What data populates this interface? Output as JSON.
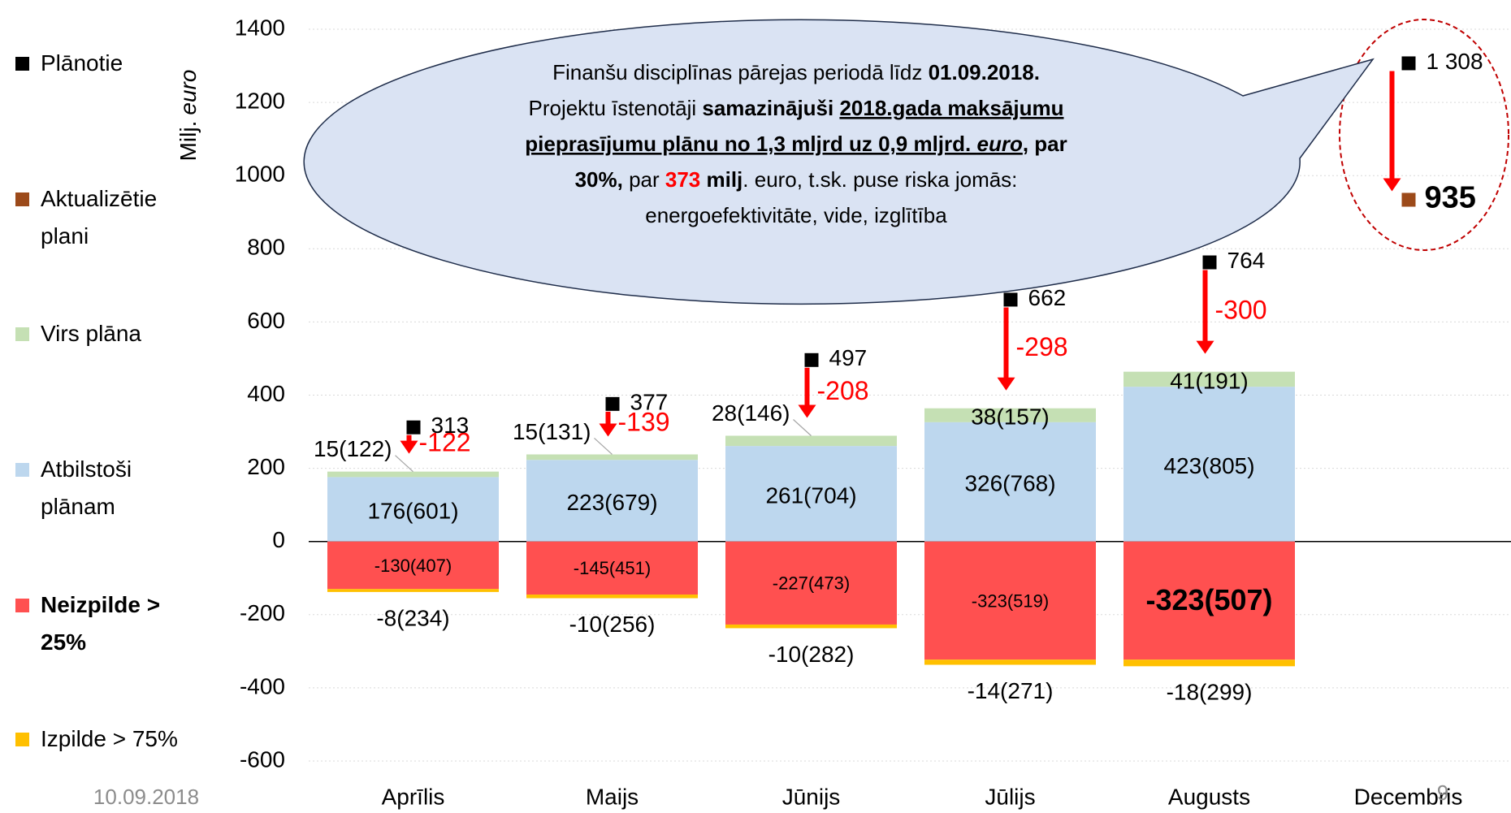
{
  "chart_data": {
    "type": "stacked_bar",
    "y_label": [
      "Milj.",
      "euro"
    ],
    "categories": [
      "Aprīlis",
      "Maijs",
      "Jūnijs",
      "Jūlijs",
      "Augusts",
      "Decembris"
    ],
    "ylim": [
      -600,
      1400
    ],
    "yticks": [
      -600,
      -400,
      -200,
      0,
      200,
      400,
      600,
      800,
      1000,
      1200,
      1400
    ],
    "grid": true,
    "series": [
      {
        "name": "Plānotie",
        "type": "marker",
        "color": "#000000",
        "values": [
          313,
          377,
          497,
          662,
          764,
          1308
        ],
        "value_labels": [
          "313",
          "377",
          "497",
          "662",
          "764",
          "1 308"
        ]
      },
      {
        "name": "Aktualizētie plani",
        "type": "marker",
        "color": "#9c4a1a",
        "values": [
          null,
          null,
          null,
          null,
          null,
          935
        ],
        "value_labels": [
          null,
          null,
          null,
          null,
          null,
          "935"
        ]
      },
      {
        "name": "Virs plāna",
        "type": "bar",
        "color": "#c5e0b4",
        "values": [
          15,
          15,
          28,
          38,
          41,
          null
        ],
        "value_labels": [
          "15(122)",
          "15(131)",
          "28(146)",
          "38(157)",
          "41(191)",
          null
        ]
      },
      {
        "name": "Atbilstoši plānam",
        "type": "bar",
        "color": "#bdd7ee",
        "values": [
          176,
          223,
          261,
          326,
          423,
          null
        ],
        "value_labels": [
          "176(601)",
          "223(679)",
          "261(704)",
          "326(768)",
          "423(805)",
          null
        ]
      },
      {
        "name": "Neizpilde > 25%",
        "type": "bar",
        "color": "#ff5050",
        "values": [
          -130,
          -145,
          -227,
          -323,
          -323,
          null
        ],
        "value_labels": [
          "-130(407)",
          "-145(451)",
          "-227(473)",
          "-323(519)",
          "-323(507)",
          null
        ]
      },
      {
        "name": "Izpilde > 75%",
        "type": "bar",
        "color": "#ffc000",
        "values": [
          -8,
          -10,
          -10,
          -14,
          -18,
          null
        ],
        "value_labels": [
          "-8(234)",
          "-10(256)",
          "-10(282)",
          "-14(271)",
          "-18(299)",
          null
        ]
      }
    ],
    "differences": [
      -122,
      -139,
      -208,
      -298,
      -300,
      null
    ],
    "difference_color": "#ff0000",
    "callout": [
      [
        "Finanšu disciplīnas pārejas periodā līdz ",
        "01.09.2018."
      ],
      [
        "Projektu īstenotāji ",
        "samazinājuši ",
        "2018.gada maksājumu"
      ],
      [
        "pieprasījumu plānu no 1,3 mljrd uz 0,9 mljrd. ",
        "euro",
        ",",
        " par"
      ],
      [
        "30%,",
        " par ",
        "373",
        " milj",
        ". euro, t.sk. puse riska jomās:"
      ],
      [
        "energoefektivitāte, vide, izglītība"
      ]
    ],
    "date": "10.09.2018",
    "page": "9"
  }
}
